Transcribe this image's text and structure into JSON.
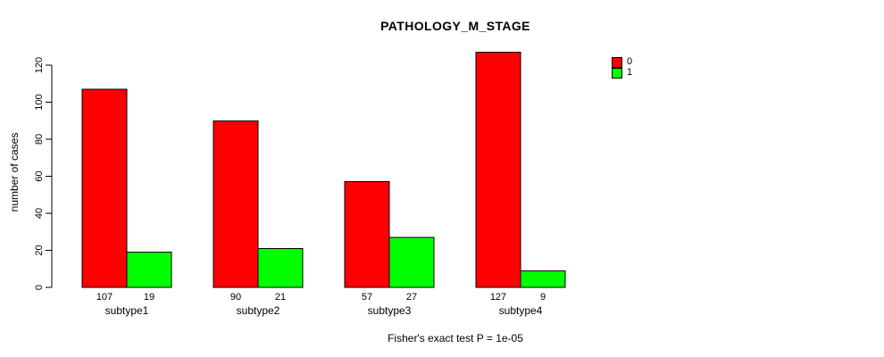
{
  "chart_data": {
    "type": "bar",
    "title": "PATHOLOGY_M_STAGE",
    "categories": [
      "subtype1",
      "subtype2",
      "subtype3",
      "subtype4"
    ],
    "series": [
      {
        "name": "0",
        "color": "#ff0000",
        "values": [
          107,
          90,
          57,
          127
        ]
      },
      {
        "name": "1",
        "color": "#00ff00",
        "values": [
          19,
          21,
          27,
          9
        ]
      }
    ],
    "value_labels": [
      [
        "107",
        "19"
      ],
      [
        "90",
        "21"
      ],
      [
        "57",
        "27"
      ],
      [
        "127",
        "9"
      ]
    ],
    "xlabel": "",
    "ylabel": "number of cases",
    "ylim": [
      0,
      120
    ],
    "yticks": [
      0,
      20,
      40,
      60,
      80,
      100,
      120
    ],
    "grid": false,
    "legend_position": "top-right",
    "bar_border_color": "#000000",
    "axis_color": "#000000",
    "annotation": "Fisher's exact test P = 1e-05"
  }
}
